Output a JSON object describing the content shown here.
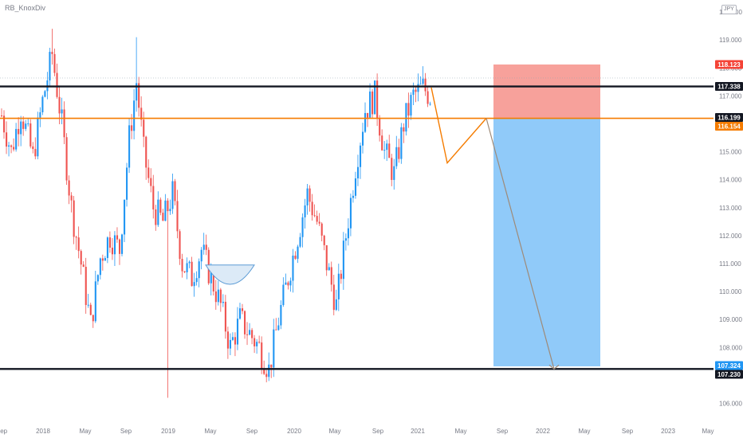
{
  "symbol": "RB_KnoxDiv",
  "currency": "JPY",
  "colors": {
    "up": "#2196f3",
    "down": "#ef5350",
    "support_resistance": "#131722",
    "entry_line": "#f57c00",
    "stop_zone": "#f7a19b",
    "target_zone": "#90caf9",
    "projection": "#f57c00",
    "target_path": "#9e8a78",
    "pattern_fill": "#dceaf7",
    "pattern_stroke": "#5b9bd5"
  },
  "chart_data": {
    "type": "candlestick",
    "title": "",
    "ylim": [
      105.9,
      120.0
    ],
    "y_ticks": [
      "106.000",
      "107.000",
      "108.000",
      "109.000",
      "110.000",
      "111.000",
      "112.000",
      "113.000",
      "114.000",
      "115.000",
      "116.000",
      "117.000",
      "118.000",
      "119.000",
      "120.000"
    ],
    "x_ticks": [
      "Sep",
      "2018",
      "May",
      "Sep",
      "2019",
      "May",
      "Sep",
      "2020",
      "May",
      "Sep",
      "2021",
      "May",
      "Sep",
      "2022",
      "May",
      "Sep",
      "2023",
      "May"
    ],
    "anchors": [
      [
        0,
        116.3
      ],
      [
        4,
        115.0
      ],
      [
        8,
        116.5
      ],
      [
        13,
        114.8
      ],
      [
        17,
        116.8
      ],
      [
        21,
        118.5
      ],
      [
        25,
        116.0
      ],
      [
        29,
        113.0
      ],
      [
        33,
        111.0
      ],
      [
        37,
        108.8
      ],
      [
        41,
        111.2
      ],
      [
        45,
        112.0
      ],
      [
        49,
        111.5
      ],
      [
        53,
        115.5
      ],
      [
        56,
        117.5
      ],
      [
        59,
        115.0
      ],
      [
        63,
        113.0
      ],
      [
        67,
        112.5
      ],
      [
        71,
        113.5
      ],
      [
        75,
        111.0
      ],
      [
        79,
        110.5
      ],
      [
        83,
        111.5
      ],
      [
        87,
        110.5
      ],
      [
        91,
        109.5
      ],
      [
        95,
        108.0
      ],
      [
        99,
        109.0
      ],
      [
        103,
        108.5
      ],
      [
        107,
        108.0
      ],
      [
        111,
        107.2
      ],
      [
        115,
        109.0
      ],
      [
        119,
        110.5
      ],
      [
        123,
        112.0
      ],
      [
        127,
        113.5
      ],
      [
        131,
        112.5
      ],
      [
        135,
        111.0
      ],
      [
        139,
        109.5
      ],
      [
        143,
        112.0
      ],
      [
        147,
        114.5
      ],
      [
        151,
        116.5
      ],
      [
        155,
        117.0
      ],
      [
        159,
        115.0
      ],
      [
        163,
        114.2
      ],
      [
        167,
        116.0
      ],
      [
        171,
        117.0
      ],
      [
        175,
        117.3
      ],
      [
        178,
        117.0
      ]
    ],
    "levels": [
      {
        "name": "resistance",
        "value": 117.338,
        "label": "117.338"
      },
      {
        "name": "entry",
        "value": 116.199,
        "label": "116.199"
      },
      {
        "name": "entry-alt",
        "value": 116.154,
        "label": "116.154"
      },
      {
        "name": "support",
        "value": 107.23,
        "label": "107.230"
      },
      {
        "name": "stop",
        "value": 118.123,
        "label": "118.123"
      },
      {
        "name": "target",
        "value": 107.324,
        "label": "107.324"
      }
    ],
    "position": {
      "type": "short",
      "entry": 116.199,
      "stop": 118.123,
      "target": 107.324
    },
    "projection_path": [
      [
        117.6,
        117.3
      ],
      [
        115.2,
        114.6
      ],
      [
        116.2,
        116.2
      ]
    ],
    "target_path_end": 107.23,
    "grid": false,
    "legend": "none"
  }
}
